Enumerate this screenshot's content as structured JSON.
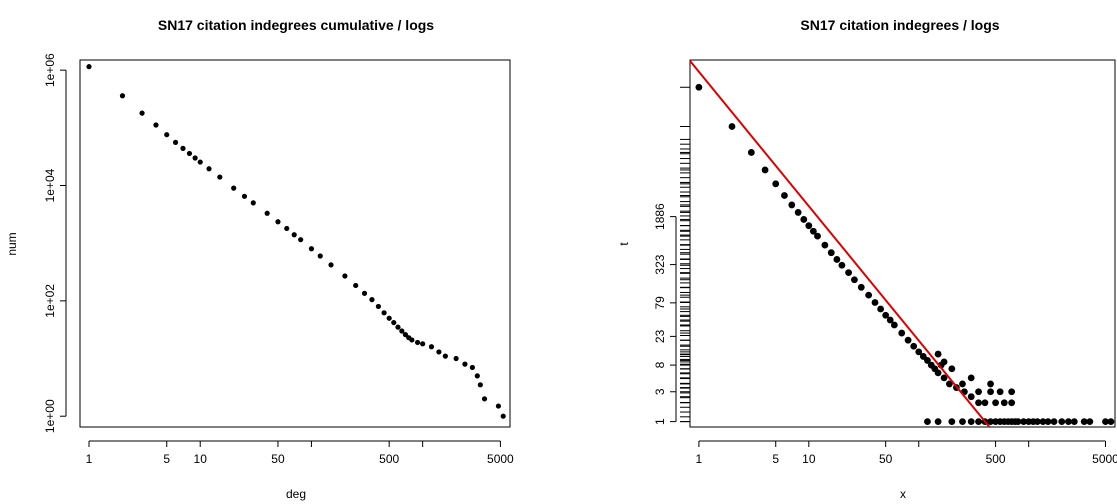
{
  "chart_data": [
    {
      "type": "scatter",
      "title": "SN17 citation indegrees cumulative / logs",
      "xlabel": "deg",
      "ylabel": "num",
      "log_x": true,
      "log_y": true,
      "xlim": [
        0.83,
        6100
      ],
      "ylim": [
        0.65,
        1500000
      ],
      "x_ticks": [
        1,
        5,
        10,
        50,
        500,
        5000
      ],
      "x_minor_ticks": [
        100,
        1000
      ],
      "y_ticks": [
        1,
        100,
        10000,
        1000000
      ],
      "y_tick_labels": [
        "1e+00",
        "1e+02",
        "1e+04",
        "1e+06"
      ],
      "grid": false,
      "points": [
        [
          1,
          1150000
        ],
        [
          2,
          360000
        ],
        [
          3,
          180000
        ],
        [
          4,
          112000
        ],
        [
          5,
          76000
        ],
        [
          6,
          56000
        ],
        [
          7,
          44000
        ],
        [
          8,
          36000
        ],
        [
          9,
          30000
        ],
        [
          10,
          25500
        ],
        [
          12,
          19500
        ],
        [
          15,
          14000
        ],
        [
          20,
          9000
        ],
        [
          25,
          6500
        ],
        [
          30,
          5000
        ],
        [
          40,
          3300
        ],
        [
          50,
          2350
        ],
        [
          60,
          1800
        ],
        [
          70,
          1400
        ],
        [
          80,
          1150
        ],
        [
          100,
          800
        ],
        [
          120,
          600
        ],
        [
          150,
          420
        ],
        [
          200,
          270
        ],
        [
          250,
          185
        ],
        [
          300,
          135
        ],
        [
          350,
          105
        ],
        [
          400,
          80
        ],
        [
          450,
          62
        ],
        [
          500,
          50
        ],
        [
          550,
          42
        ],
        [
          600,
          35
        ],
        [
          650,
          30
        ],
        [
          700,
          26
        ],
        [
          750,
          23
        ],
        [
          800,
          21
        ],
        [
          900,
          19
        ],
        [
          1000,
          18
        ],
        [
          1200,
          16
        ],
        [
          1400,
          13
        ],
        [
          1600,
          11
        ],
        [
          2000,
          10
        ],
        [
          2400,
          8
        ],
        [
          2800,
          7
        ],
        [
          3100,
          5
        ],
        [
          3300,
          3.5
        ],
        [
          3600,
          2
        ],
        [
          4800,
          1.5
        ],
        [
          5300,
          1
        ]
      ]
    },
    {
      "type": "scatter",
      "title": "SN17 citation indegrees / logs",
      "xlabel": "x",
      "ylabel": "t",
      "log_x": true,
      "log_y": true,
      "xlim": [
        0.83,
        6100
      ],
      "ylim": [
        0.82,
        600000
      ],
      "x_ticks": [
        1,
        5,
        10,
        50,
        500,
        5000
      ],
      "x_minor_ticks": [
        100,
        1000
      ],
      "y_ticks": [
        1,
        3,
        8,
        23,
        79,
        323,
        1886
      ],
      "y_rug": true,
      "grid": false,
      "fit_line": {
        "color": "#dd0000",
        "from": [
          0.83,
          580000
        ],
        "to": [
          440,
          0.82
        ]
      },
      "points": [
        [
          1,
          220000
        ],
        [
          2,
          52000
        ],
        [
          3,
          20000
        ],
        [
          4,
          10500
        ],
        [
          5,
          6300
        ],
        [
          6,
          4100
        ],
        [
          7,
          2900
        ],
        [
          8,
          2200
        ],
        [
          9,
          1700
        ],
        [
          10,
          1350
        ],
        [
          11,
          1100
        ],
        [
          12,
          920
        ],
        [
          14,
          660
        ],
        [
          16,
          500
        ],
        [
          18,
          390
        ],
        [
          20,
          315
        ],
        [
          23,
          240
        ],
        [
          26,
          185
        ],
        [
          30,
          140
        ],
        [
          35,
          105
        ],
        [
          40,
          80
        ],
        [
          45,
          63
        ],
        [
          50,
          50
        ],
        [
          55,
          42
        ],
        [
          60,
          35
        ],
        [
          70,
          26
        ],
        [
          80,
          20
        ],
        [
          90,
          16
        ],
        [
          100,
          13
        ],
        [
          110,
          11
        ],
        [
          120,
          9.5
        ],
        [
          130,
          8
        ],
        [
          140,
          7
        ],
        [
          150,
          6
        ],
        [
          170,
          5
        ],
        [
          190,
          4
        ],
        [
          220,
          3.5
        ],
        [
          260,
          3
        ],
        [
          300,
          2.5
        ],
        [
          350,
          2
        ],
        [
          400,
          2
        ],
        [
          500,
          2
        ],
        [
          600,
          2
        ],
        [
          700,
          2
        ],
        [
          250,
          4
        ],
        [
          300,
          5
        ],
        [
          200,
          7
        ],
        [
          170,
          9
        ],
        [
          350,
          3
        ],
        [
          450,
          3
        ],
        [
          550,
          3
        ],
        [
          450,
          4
        ],
        [
          700,
          3
        ],
        [
          150,
          12
        ],
        [
          160,
          8
        ],
        [
          120,
          1
        ],
        [
          150,
          1
        ],
        [
          200,
          1
        ],
        [
          250,
          1
        ],
        [
          300,
          1
        ],
        [
          350,
          1
        ],
        [
          400,
          1
        ],
        [
          450,
          1
        ],
        [
          500,
          1
        ],
        [
          550,
          1
        ],
        [
          600,
          1
        ],
        [
          650,
          1
        ],
        [
          700,
          1
        ],
        [
          750,
          1
        ],
        [
          800,
          1
        ],
        [
          900,
          1
        ],
        [
          1000,
          1
        ],
        [
          1100,
          1
        ],
        [
          1200,
          1
        ],
        [
          1350,
          1
        ],
        [
          1500,
          1
        ],
        [
          1700,
          1
        ],
        [
          2000,
          1
        ],
        [
          2300,
          1
        ],
        [
          2600,
          1
        ],
        [
          3200,
          1
        ],
        [
          3600,
          1
        ],
        [
          5000,
          1
        ],
        [
          5600,
          1
        ]
      ]
    }
  ]
}
